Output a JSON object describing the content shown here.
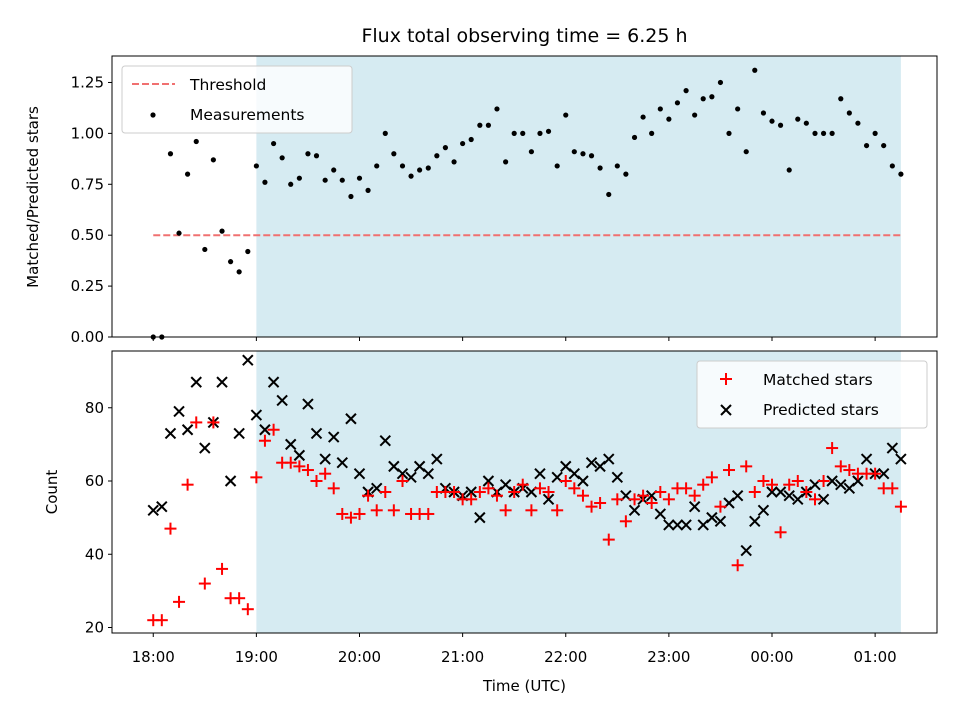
{
  "chart_data": [
    {
      "type": "scatter",
      "title": "Flux total observing time = 6.25 h",
      "xlabel": "",
      "ylabel": "Matched/Predicted stars",
      "xlim": [
        -0.4,
        7.6
      ],
      "ylim": [
        0.0,
        1.38
      ],
      "yticks": [
        0.0,
        0.25,
        0.5,
        0.75,
        1.0,
        1.25
      ],
      "ytick_labels": [
        "0.00",
        "0.25",
        "0.50",
        "0.75",
        "1.00",
        "1.25"
      ],
      "observing_window": [
        1.0,
        7.25
      ],
      "legend": {
        "position": "upper left",
        "entries": [
          "Threshold",
          "Measurements"
        ]
      },
      "series": [
        {
          "name": "Threshold",
          "kind": "dashed-line",
          "color": "#f07070",
          "x": [
            0.0,
            7.25
          ],
          "y": [
            0.5,
            0.5
          ]
        },
        {
          "name": "Measurements",
          "kind": "points",
          "color": "#000000",
          "x": [
            0.0,
            0.083,
            0.167,
            0.25,
            0.333,
            0.417,
            0.5,
            0.583,
            0.667,
            0.75,
            0.833,
            0.917,
            1.0,
            1.083,
            1.167,
            1.25,
            1.333,
            1.417,
            1.5,
            1.583,
            1.667,
            1.75,
            1.833,
            1.917,
            2.0,
            2.083,
            2.167,
            2.25,
            2.333,
            2.417,
            2.5,
            2.583,
            2.667,
            2.75,
            2.833,
            2.917,
            3.0,
            3.083,
            3.167,
            3.25,
            3.333,
            3.417,
            3.5,
            3.583,
            3.667,
            3.75,
            3.833,
            3.917,
            4.0,
            4.083,
            4.167,
            4.25,
            4.333,
            4.417,
            4.5,
            4.583,
            4.667,
            4.75,
            4.833,
            4.917,
            5.0,
            5.083,
            5.167,
            5.25,
            5.333,
            5.417,
            5.5,
            5.583,
            5.667,
            5.75,
            5.833,
            5.917,
            6.0,
            6.083,
            6.167,
            6.25,
            6.333,
            6.417,
            6.5,
            6.583,
            6.667,
            6.75,
            6.833,
            6.917,
            7.0,
            7.083,
            7.167,
            7.25
          ],
          "y": [
            0.0,
            0.0,
            0.9,
            0.51,
            0.8,
            0.96,
            0.43,
            0.87,
            0.52,
            0.37,
            0.32,
            0.42,
            0.84,
            0.76,
            0.95,
            0.88,
            0.75,
            0.78,
            0.9,
            0.89,
            0.77,
            0.82,
            0.77,
            0.69,
            0.78,
            0.72,
            0.84,
            1.0,
            0.9,
            0.84,
            0.79,
            0.82,
            0.83,
            0.89,
            0.93,
            0.86,
            0.95,
            0.97,
            1.04,
            1.04,
            1.12,
            0.86,
            1.0,
            1.0,
            0.91,
            1.0,
            1.01,
            0.84,
            1.09,
            0.91,
            0.9,
            0.89,
            0.83,
            0.7,
            0.84,
            0.8,
            0.98,
            1.08,
            1.0,
            1.12,
            1.07,
            1.15,
            1.21,
            1.09,
            1.17,
            1.18,
            1.25,
            1.0,
            1.12,
            0.91,
            1.31,
            1.1,
            1.06,
            1.04,
            0.82,
            1.07,
            1.05,
            1.0,
            1.0,
            1.0,
            1.17,
            1.1,
            1.05,
            0.94,
            1.0,
            0.94,
            0.84,
            0.8
          ]
        }
      ]
    },
    {
      "type": "scatter",
      "title": "",
      "xlabel": "Time (UTC)",
      "ylabel": "Count",
      "xlim": [
        -0.4,
        7.6
      ],
      "ylim": [
        18.5,
        95.5
      ],
      "xticks": [
        0,
        1,
        2,
        3,
        4,
        5,
        6,
        7
      ],
      "xtick_labels": [
        "18:00",
        "19:00",
        "20:00",
        "21:00",
        "22:00",
        "23:00",
        "00:00",
        "01:00"
      ],
      "yticks": [
        20,
        40,
        60,
        80
      ],
      "ytick_labels": [
        "20",
        "40",
        "60",
        "80"
      ],
      "observing_window": [
        1.0,
        7.25
      ],
      "legend": {
        "position": "upper right",
        "entries": [
          "Matched stars",
          "Predicted stars"
        ]
      },
      "series": [
        {
          "name": "Matched stars",
          "marker": "plus",
          "color": "#ff0000",
          "x": [
            0.0,
            0.083,
            0.167,
            0.25,
            0.333,
            0.417,
            0.5,
            0.583,
            0.667,
            0.75,
            0.833,
            0.917,
            1.0,
            1.083,
            1.167,
            1.25,
            1.333,
            1.417,
            1.5,
            1.583,
            1.667,
            1.75,
            1.833,
            1.917,
            2.0,
            2.083,
            2.167,
            2.25,
            2.333,
            2.417,
            2.5,
            2.583,
            2.667,
            2.75,
            2.833,
            2.917,
            3.0,
            3.083,
            3.167,
            3.25,
            3.333,
            3.417,
            3.5,
            3.583,
            3.667,
            3.75,
            3.833,
            3.917,
            4.0,
            4.083,
            4.167,
            4.25,
            4.333,
            4.417,
            4.5,
            4.583,
            4.667,
            4.75,
            4.833,
            4.917,
            5.0,
            5.083,
            5.167,
            5.25,
            5.333,
            5.417,
            5.5,
            5.583,
            5.667,
            5.75,
            5.833,
            5.917,
            6.0,
            6.083,
            6.167,
            6.25,
            6.333,
            6.417,
            6.5,
            6.583,
            6.667,
            6.75,
            6.833,
            6.917,
            7.0,
            7.083,
            7.167,
            7.25
          ],
          "y": [
            22,
            22,
            47,
            27,
            59,
            76,
            32,
            76,
            36,
            28,
            28,
            25,
            61,
            71,
            74,
            65,
            65,
            64,
            63,
            60,
            62,
            58,
            51,
            50,
            51,
            56,
            52,
            57,
            52,
            60,
            51,
            51,
            51,
            57,
            57,
            57,
            55,
            55,
            57,
            58,
            56,
            52,
            57,
            59,
            52,
            58,
            57,
            52,
            60,
            58,
            56,
            53,
            54,
            44,
            55,
            49,
            55,
            56,
            54,
            57,
            55,
            58,
            58,
            56,
            59,
            61,
            53,
            63,
            37,
            64,
            57,
            60,
            59,
            46,
            59,
            60,
            57,
            55,
            60,
            69,
            64,
            63,
            62,
            62,
            62,
            58,
            58,
            53
          ]
        },
        {
          "name": "Predicted stars",
          "marker": "x",
          "color": "#000000",
          "x": [
            0.0,
            0.083,
            0.167,
            0.25,
            0.333,
            0.417,
            0.5,
            0.583,
            0.667,
            0.75,
            0.833,
            0.917,
            1.0,
            1.083,
            1.167,
            1.25,
            1.333,
            1.417,
            1.5,
            1.583,
            1.667,
            1.75,
            1.833,
            1.917,
            2.0,
            2.083,
            2.167,
            2.25,
            2.333,
            2.417,
            2.5,
            2.583,
            2.667,
            2.75,
            2.833,
            2.917,
            3.0,
            3.083,
            3.167,
            3.25,
            3.333,
            3.417,
            3.5,
            3.583,
            3.667,
            3.75,
            3.833,
            3.917,
            4.0,
            4.083,
            4.167,
            4.25,
            4.333,
            4.417,
            4.5,
            4.583,
            4.667,
            4.75,
            4.833,
            4.917,
            5.0,
            5.083,
            5.167,
            5.25,
            5.333,
            5.417,
            5.5,
            5.583,
            5.667,
            5.75,
            5.833,
            5.917,
            6.0,
            6.083,
            6.167,
            6.25,
            6.333,
            6.417,
            6.5,
            6.583,
            6.667,
            6.75,
            6.833,
            6.917,
            7.0,
            7.083,
            7.167,
            7.25
          ],
          "y": [
            52,
            53,
            73,
            79,
            74,
            87,
            69,
            76,
            87,
            60,
            73,
            93,
            78,
            74,
            87,
            82,
            70,
            67,
            81,
            73,
            66,
            72,
            65,
            77,
            62,
            57,
            58,
            71,
            64,
            62,
            61,
            64,
            62,
            66,
            58,
            57,
            56,
            57,
            50,
            60,
            57,
            59,
            57,
            58,
            57,
            62,
            55,
            61,
            64,
            62,
            60,
            65,
            64,
            66,
            61,
            56,
            52,
            55,
            56,
            51,
            48,
            48,
            48,
            53,
            48,
            50,
            49,
            54,
            56,
            41,
            49,
            52,
            57,
            57,
            56,
            55,
            57,
            59,
            55,
            60,
            59,
            58,
            60,
            66,
            62,
            62,
            69,
            66
          ]
        }
      ]
    }
  ]
}
